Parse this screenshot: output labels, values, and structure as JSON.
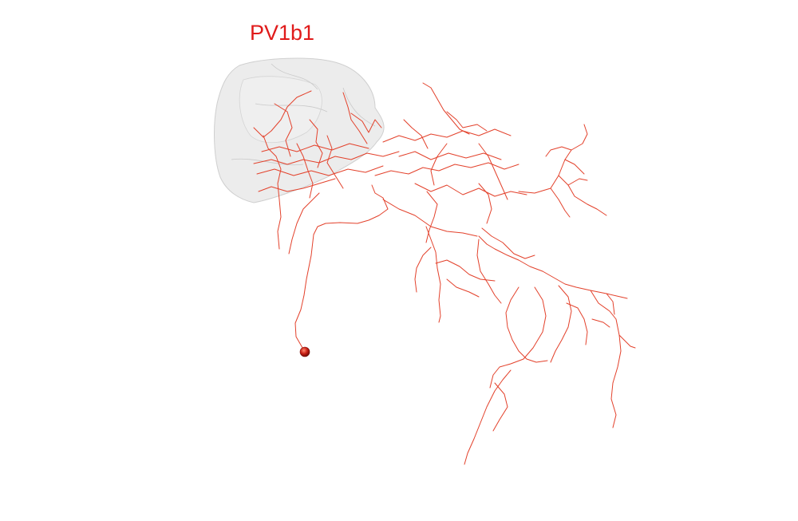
{
  "title": "PV1b1",
  "colors": {
    "title": "#e01b1b",
    "neuron": "#e3412b",
    "soma": "#c81e14",
    "neuropil": "#d8d8d8"
  }
}
